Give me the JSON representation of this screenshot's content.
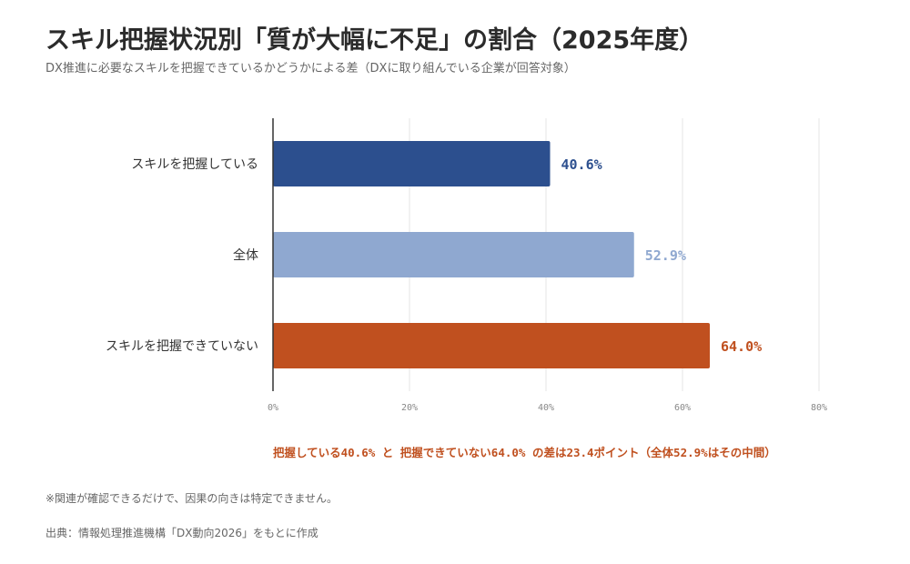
{
  "title": "スキル把握状況別「質が大幅に不足」の割合（2025年度）",
  "subtitle": "DX推進に必要なスキルを把握できているかどうかによる差（DXに取り組んでいる企業が回答対象）",
  "note": "把握している40.6% と 把握できていない64.0% の差は23.4ポイント（全体52.9%はその中間）",
  "footnote": "※関連が確認できるだけで、因果の向きは特定できません。",
  "source": "出典：情報処理推進機構「DX動向2026」をもとに作成",
  "chart_data": {
    "type": "bar",
    "orientation": "horizontal",
    "categories": [
      "スキルを把握している",
      "全体",
      "スキルを把握できていない"
    ],
    "values": [
      40.6,
      52.9,
      64.0
    ],
    "value_labels": [
      "40.6%",
      "52.9%",
      "64.0%"
    ],
    "colors": [
      "#2c4f8e",
      "#8fa8d0",
      "#c0501f"
    ],
    "xlim": [
      0,
      80
    ],
    "xticks": [
      0,
      20,
      40,
      60,
      80
    ],
    "xtick_labels": [
      "0%",
      "20%",
      "40%",
      "60%",
      "80%"
    ],
    "grid": true
  }
}
